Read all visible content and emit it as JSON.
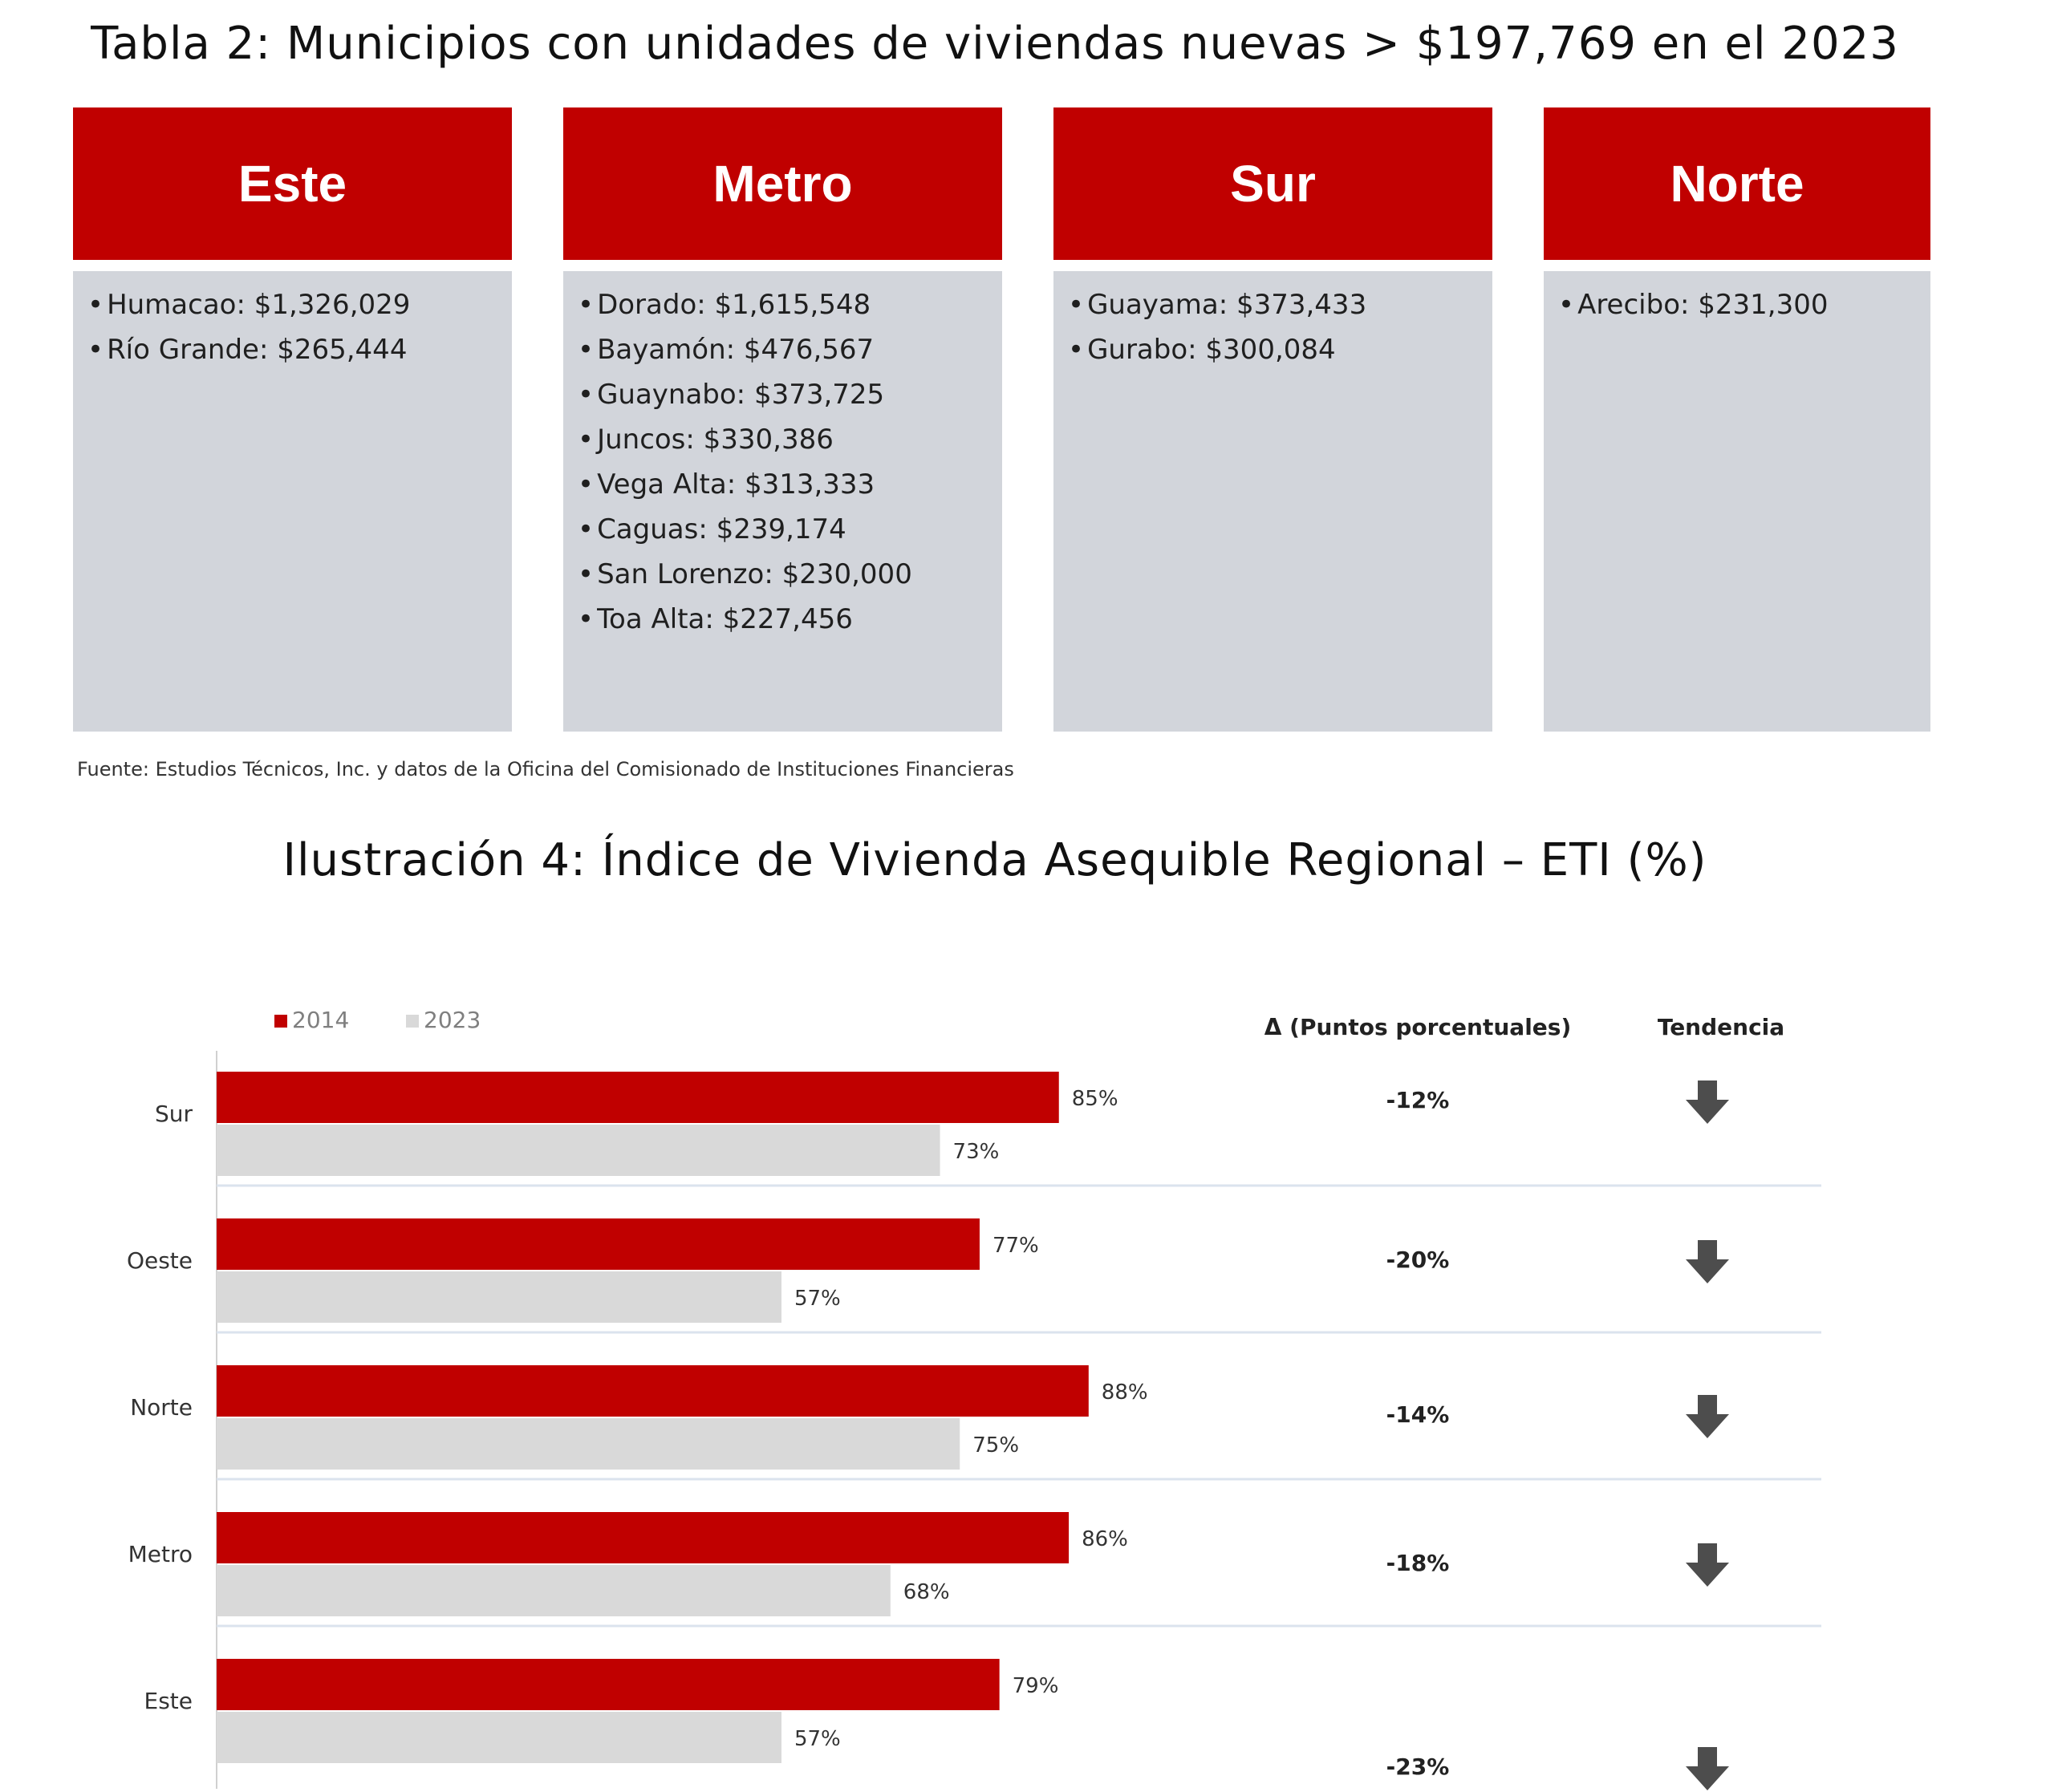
{
  "table": {
    "title": "Tabla 2: Municipios con unidades de viviendas nuevas > $197,769 en el 2023",
    "regions": [
      {
        "name": "Este",
        "items": [
          "Humacao: $1,326,029",
          "Río Grande: $265,444"
        ]
      },
      {
        "name": "Metro",
        "items": [
          "Dorado: $1,615,548",
          "Bayamón: $476,567",
          "Guaynabo: $373,725",
          "Juncos: $330,386",
          "Vega Alta: $313,333",
          "Caguas: $239,174",
          "San Lorenzo: $230,000",
          "Toa Alta: $227,456"
        ]
      },
      {
        "name": "Sur",
        "items": [
          "Guayama: $373,433",
          "Gurabo: $300,084"
        ]
      },
      {
        "name": "Norte",
        "items": [
          "Arecibo: $231,300"
        ]
      }
    ],
    "source": "Fuente: Estudios Técnicos, Inc. y datos de la Oficina del Comisionado de Instituciones Financieras"
  },
  "chart_data": {
    "type": "bar",
    "orientation": "horizontal",
    "title": "Ilustración 4: Índice de Vivienda Asequible Regional – ETI (%)",
    "categories": [
      "Sur",
      "Oeste",
      "Norte",
      "Metro",
      "Este"
    ],
    "series": [
      {
        "name": "2014",
        "color": "#c00000",
        "values": [
          85,
          77,
          88,
          86,
          79
        ]
      },
      {
        "name": "2023",
        "color": "#d9d9d9",
        "values": [
          73,
          57,
          75,
          68,
          57
        ]
      }
    ],
    "data_labels": {
      "2014": [
        "85%",
        "77%",
        "88%",
        "86%",
        "79%"
      ],
      "2023": [
        "73%",
        "57%",
        "75%",
        "68%",
        "57%"
      ]
    },
    "delta_header": "Δ (Puntos porcentuales)",
    "trend_header": "Tendencia",
    "deltas": [
      "-12%",
      "-20%",
      "-14%",
      "-18%",
      "-23%"
    ],
    "trend_icon": "down-arrow-icon",
    "legend_position": "top-left",
    "xlim": [
      0,
      100
    ],
    "grid": false
  }
}
